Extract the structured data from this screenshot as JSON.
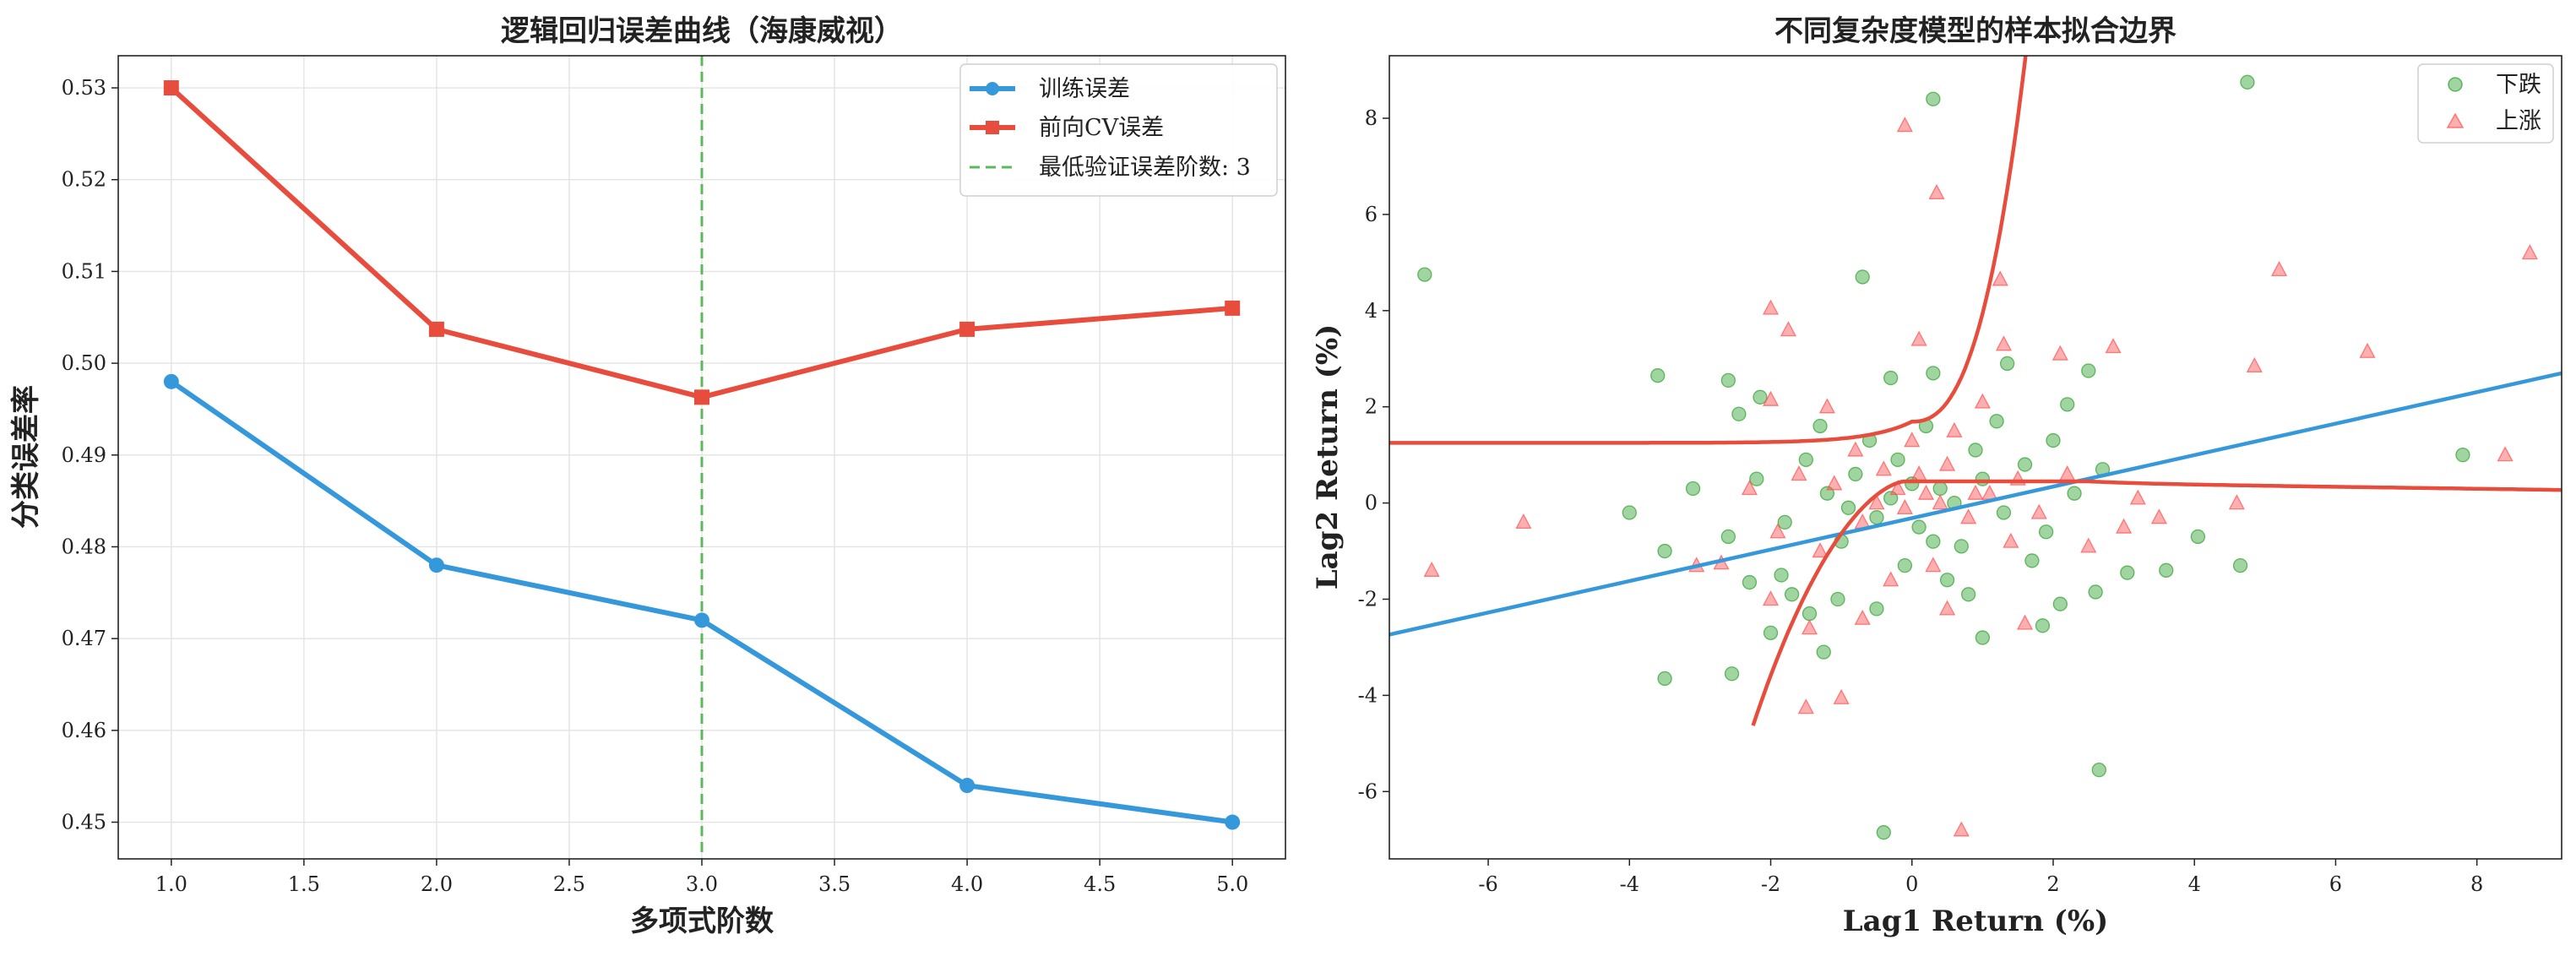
{
  "chart_data": [
    {
      "type": "line",
      "title": "逻辑回归误差曲线（海康威视）",
      "xlabel": "多项式阶数",
      "ylabel": "分类误差率",
      "x": [
        1.0,
        2.0,
        3.0,
        4.0,
        5.0
      ],
      "xlim": [
        0.8,
        5.2
      ],
      "ylim": [
        0.446,
        0.5335
      ],
      "xticks": [
        1.0,
        1.5,
        2.0,
        2.5,
        3.0,
        3.5,
        4.0,
        4.5,
        5.0
      ],
      "xtick_labels": [
        "1.0",
        "1.5",
        "2.0",
        "2.5",
        "3.0",
        "3.5",
        "4.0",
        "4.5",
        "5.0"
      ],
      "yticks": [
        0.45,
        0.46,
        0.47,
        0.48,
        0.49,
        0.5,
        0.51,
        0.52,
        0.53
      ],
      "ytick_labels": [
        "0.45",
        "0.46",
        "0.47",
        "0.48",
        "0.49",
        "0.50",
        "0.51",
        "0.52",
        "0.53"
      ],
      "grid": true,
      "legend_position": "top-right",
      "series": [
        {
          "name": "训练误差",
          "values": [
            0.498,
            0.478,
            0.472,
            0.454,
            0.45
          ],
          "color": "#3498db",
          "marker": "circle"
        },
        {
          "name": "前向CV误差",
          "values": [
            0.53,
            0.5037,
            0.4963,
            0.5037,
            0.506
          ],
          "color": "#e74c3c",
          "marker": "square"
        }
      ],
      "vline": {
        "x": 3.0,
        "label": "最低验证误差阶数: 3",
        "color": "#5cb85c",
        "style": "dashed"
      }
    },
    {
      "type": "scatter",
      "title": "不同复杂度模型的样本拟合边界",
      "xlabel": "Lag1 Return (%)",
      "ylabel": "Lag2 Return (%)",
      "xlim": [
        -7.4,
        9.2
      ],
      "ylim": [
        -7.4,
        9.3
      ],
      "xticks": [
        -6,
        -4,
        -2,
        0,
        2,
        4,
        6,
        8
      ],
      "xtick_labels": [
        "-6",
        "-4",
        "-2",
        "0",
        "2",
        "4",
        "6",
        "8"
      ],
      "yticks": [
        -6,
        -4,
        -2,
        0,
        2,
        4,
        6,
        8
      ],
      "ytick_labels": [
        "-6",
        "-4",
        "-2",
        "0",
        "2",
        "4",
        "6",
        "8"
      ],
      "grid": false,
      "legend_position": "top-right",
      "series": [
        {
          "name": "下跌",
          "color": "#2ca02c",
          "marker": "circle",
          "points": [
            [
              -6.9,
              4.75
            ],
            [
              -4.0,
              -0.2
            ],
            [
              -3.6,
              2.65
            ],
            [
              -3.5,
              -3.65
            ],
            [
              -2.55,
              -3.55
            ],
            [
              -2.6,
              2.55
            ],
            [
              -2.45,
              1.85
            ],
            [
              -2.3,
              -1.65
            ],
            [
              -2.0,
              -2.7
            ],
            [
              -1.85,
              -1.5
            ],
            [
              -1.45,
              -2.3
            ],
            [
              -1.25,
              -3.1
            ],
            [
              -1.05,
              -2.0
            ],
            [
              -0.7,
              4.7
            ],
            [
              -0.4,
              -6.85
            ],
            [
              0.3,
              8.4
            ],
            [
              4.75,
              8.75
            ],
            [
              2.65,
              -5.55
            ],
            [
              2.5,
              2.75
            ],
            [
              1.35,
              2.9
            ],
            [
              2.2,
              2.05
            ],
            [
              2.1,
              -2.1
            ],
            [
              3.05,
              -1.45
            ],
            [
              3.6,
              -1.4
            ],
            [
              4.05,
              -0.7
            ],
            [
              4.65,
              -1.3
            ],
            [
              7.8,
              1.0
            ],
            [
              2.6,
              -1.85
            ],
            [
              1.85,
              -2.55
            ],
            [
              1.0,
              -2.8
            ],
            [
              0.3,
              2.7
            ],
            [
              -0.3,
              2.6
            ],
            [
              -3.5,
              -1.0
            ],
            [
              -3.1,
              0.3
            ],
            [
              -2.15,
              2.2
            ],
            [
              2.7,
              0.7
            ],
            [
              -1.2,
              0.2
            ],
            [
              -0.8,
              0.6
            ],
            [
              -0.5,
              -0.3
            ],
            [
              -0.2,
              0.9
            ],
            [
              0.1,
              -0.5
            ],
            [
              0.4,
              0.3
            ],
            [
              0.7,
              -0.9
            ],
            [
              1.0,
              0.5
            ],
            [
              1.3,
              -0.2
            ],
            [
              -1.0,
              -0.8
            ],
            [
              -0.6,
              1.3
            ],
            [
              0.2,
              1.6
            ],
            [
              0.9,
              1.1
            ],
            [
              1.6,
              0.8
            ],
            [
              -1.5,
              0.9
            ],
            [
              -1.8,
              -0.4
            ],
            [
              0.5,
              -1.6
            ],
            [
              -0.1,
              -1.3
            ],
            [
              1.9,
              -0.6
            ],
            [
              2.3,
              0.2
            ],
            [
              -2.2,
              0.5
            ],
            [
              -0.3,
              0.1
            ],
            [
              0.0,
              0.4
            ],
            [
              0.6,
              0.0
            ],
            [
              -0.9,
              -0.1
            ],
            [
              1.2,
              1.7
            ],
            [
              -1.3,
              1.6
            ],
            [
              0.8,
              -1.9
            ],
            [
              -0.5,
              -2.2
            ],
            [
              1.7,
              -1.2
            ],
            [
              -2.6,
              -0.7
            ],
            [
              2.0,
              1.3
            ],
            [
              -1.7,
              -1.9
            ],
            [
              0.3,
              -0.8
            ]
          ]
        },
        {
          "name": "上涨",
          "color": "#ff4d4d",
          "marker": "triangle",
          "points": [
            [
              -6.8,
              -1.4
            ],
            [
              -5.5,
              -0.4
            ],
            [
              -2.0,
              4.05
            ],
            [
              -1.75,
              3.6
            ],
            [
              -0.1,
              7.85
            ],
            [
              0.35,
              6.45
            ],
            [
              1.25,
              4.65
            ],
            [
              8.75,
              5.2
            ],
            [
              5.2,
              4.85
            ],
            [
              6.45,
              3.15
            ],
            [
              4.85,
              2.85
            ],
            [
              8.4,
              1.0
            ],
            [
              2.85,
              3.25
            ],
            [
              2.1,
              3.1
            ],
            [
              1.3,
              3.3
            ],
            [
              0.1,
              3.4
            ],
            [
              -2.0,
              2.15
            ],
            [
              -3.05,
              -1.3
            ],
            [
              -2.7,
              -1.25
            ],
            [
              -2.0,
              -2.0
            ],
            [
              -1.45,
              -2.6
            ],
            [
              -1.5,
              -4.25
            ],
            [
              -1.0,
              -4.05
            ],
            [
              0.7,
              -6.8
            ],
            [
              3.2,
              0.1
            ],
            [
              3.5,
              -0.3
            ],
            [
              3.0,
              -0.5
            ],
            [
              4.6,
              0.0
            ],
            [
              1.6,
              -2.5
            ],
            [
              0.5,
              -2.2
            ],
            [
              -1.1,
              0.4
            ],
            [
              -0.7,
              -0.4
            ],
            [
              -0.4,
              0.7
            ],
            [
              -0.1,
              -0.1
            ],
            [
              0.2,
              0.2
            ],
            [
              0.5,
              0.8
            ],
            [
              0.8,
              -0.3
            ],
            [
              1.1,
              0.2
            ],
            [
              1.4,
              -0.8
            ],
            [
              -1.3,
              -1.0
            ],
            [
              -0.8,
              1.1
            ],
            [
              0.0,
              1.3
            ],
            [
              0.6,
              1.5
            ],
            [
              1.5,
              0.5
            ],
            [
              -1.6,
              0.6
            ],
            [
              -1.9,
              -0.6
            ],
            [
              0.3,
              -1.3
            ],
            [
              -0.3,
              -1.6
            ],
            [
              1.8,
              -0.2
            ],
            [
              2.2,
              0.6
            ],
            [
              -2.3,
              0.3
            ],
            [
              -0.5,
              0.0
            ],
            [
              0.1,
              0.6
            ],
            [
              0.9,
              0.2
            ],
            [
              -1.2,
              2.0
            ],
            [
              1.0,
              2.1
            ],
            [
              -0.7,
              -2.4
            ],
            [
              0.4,
              0.0
            ],
            [
              -0.2,
              0.3
            ],
            [
              2.5,
              -0.9
            ]
          ]
        }
      ],
      "boundaries": [
        {
          "kind": "linear",
          "color": "#3498db",
          "slope": 0.3274,
          "intercept": -0.3138
        },
        {
          "kind": "cubic",
          "color": "#e74c3c",
          "center_x": 0.0,
          "center_y": 0.3,
          "asymptote_upper_left": 1.25,
          "asymptote_lower_right": 0.45
        }
      ]
    }
  ]
}
